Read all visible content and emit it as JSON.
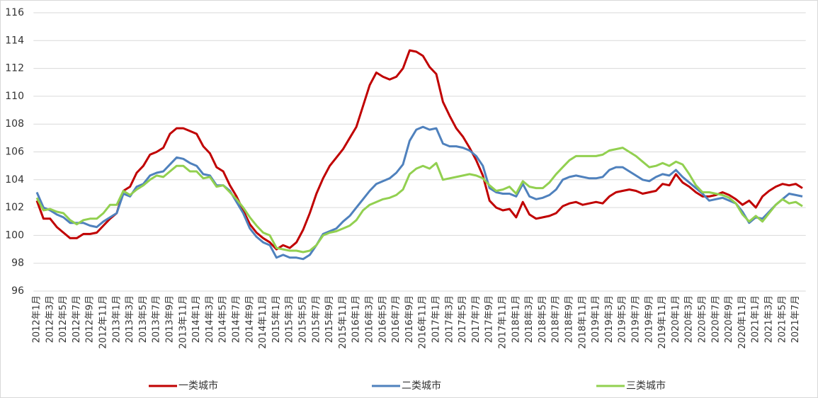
{
  "chart_data": {
    "type": "line",
    "categories": [
      "2012年1月",
      null,
      "2012年3月",
      null,
      "2012年5月",
      null,
      "2012年7月",
      null,
      "2012年9月",
      null,
      "2012年11月",
      null,
      "2013年1月",
      null,
      "2013年3月",
      null,
      "2013年5月",
      null,
      "2013年7月",
      null,
      "2013年9月",
      null,
      "2013年11月",
      null,
      "2014年1月",
      null,
      "2014年3月",
      null,
      "2014年5月",
      null,
      "2014年7月",
      null,
      "2014年9月",
      null,
      "2014年11月",
      null,
      "2015年1月",
      null,
      "2015年3月",
      null,
      "2015年5月",
      null,
      "2015年7月",
      null,
      "2015年9月",
      null,
      "2015年11月",
      null,
      "2016年1月",
      null,
      "2016年3月",
      null,
      "2016年5月",
      null,
      "2016年7月",
      null,
      "2016年9月",
      null,
      "2016年11月",
      null,
      "2017年1月",
      null,
      "2017年3月",
      null,
      "2017年5月",
      null,
      "2017年7月",
      null,
      "2017年9月",
      null,
      "2017年11月",
      null,
      "2018年1月",
      null,
      "2018年3月",
      null,
      "2018年5月",
      null,
      "2018年7月",
      null,
      "2018年9月",
      null,
      "2018年11月",
      null,
      "2019年1月",
      null,
      "2019年3月",
      null,
      "2019年5月",
      null,
      "2019年7月",
      null,
      "2019年9月",
      null,
      "2019年11月",
      null,
      "2020年1月",
      null,
      "2020年3月",
      null,
      "2020年5月",
      null,
      "2020年7月",
      null,
      "2020年9月",
      null,
      "2020年11月",
      null,
      "2021年1月",
      null,
      "2021年3月",
      null,
      "2021年5月",
      null,
      "2021年7月",
      null
    ],
    "series": [
      {
        "name": "一类城市",
        "color": "#c00000",
        "values": [
          102.5,
          101.2,
          101.2,
          100.6,
          100.2,
          99.8,
          99.8,
          100.1,
          100.1,
          100.2,
          100.7,
          101.2,
          101.6,
          103.2,
          103.5,
          104.5,
          105.0,
          105.8,
          106.0,
          106.3,
          107.3,
          107.7,
          107.7,
          107.5,
          107.3,
          106.4,
          105.9,
          104.9,
          104.6,
          103.6,
          102.8,
          101.8,
          100.8,
          100.2,
          99.8,
          99.5,
          99.0,
          99.3,
          99.1,
          99.5,
          100.4,
          101.6,
          103.0,
          104.1,
          105.0,
          105.6,
          106.2,
          107.0,
          107.8,
          109.3,
          110.8,
          111.7,
          111.4,
          111.2,
          111.4,
          112.0,
          113.3,
          113.2,
          112.9,
          112.1,
          111.6,
          109.6,
          108.6,
          107.7,
          107.1,
          106.3,
          105.4,
          104.3,
          102.5,
          102.0,
          101.8,
          101.9,
          101.3,
          102.4,
          101.5,
          101.2,
          101.3,
          101.4,
          101.6,
          102.1,
          102.3,
          102.4,
          102.2,
          102.3,
          102.4,
          102.3,
          102.8,
          103.1,
          103.2,
          103.3,
          103.2,
          103.0,
          103.1,
          103.2,
          103.7,
          103.6,
          104.4,
          103.8,
          103.5,
          103.1,
          102.8,
          102.8,
          102.9,
          103.1,
          102.9,
          102.6,
          102.2,
          102.5,
          102.0,
          102.8,
          103.2,
          103.5,
          103.7,
          103.6,
          103.7,
          103.4
        ]
      },
      {
        "name": "二类城市",
        "color": "#4f81bd",
        "values": [
          103.1,
          102.0,
          101.8,
          101.5,
          101.3,
          100.9,
          100.9,
          100.9,
          100.7,
          100.6,
          101.0,
          101.3,
          101.6,
          103.0,
          102.8,
          103.5,
          103.7,
          104.3,
          104.5,
          104.6,
          105.1,
          105.6,
          105.5,
          105.2,
          105.0,
          104.4,
          104.3,
          103.6,
          103.6,
          103.2,
          102.4,
          101.6,
          100.5,
          99.9,
          99.5,
          99.3,
          98.4,
          98.6,
          98.4,
          98.4,
          98.3,
          98.6,
          99.3,
          100.1,
          100.3,
          100.5,
          101.0,
          101.4,
          102.0,
          102.6,
          103.2,
          103.7,
          103.9,
          104.1,
          104.5,
          105.1,
          106.8,
          107.6,
          107.8,
          107.6,
          107.7,
          106.6,
          106.4,
          106.4,
          106.3,
          106.1,
          105.7,
          105.0,
          103.4,
          103.1,
          103.0,
          103.0,
          102.8,
          103.7,
          102.8,
          102.6,
          102.7,
          102.9,
          103.3,
          104.0,
          104.2,
          104.3,
          104.2,
          104.1,
          104.1,
          104.2,
          104.7,
          104.9,
          104.9,
          104.6,
          104.3,
          104.0,
          103.9,
          104.2,
          104.4,
          104.3,
          104.7,
          104.2,
          103.8,
          103.4,
          103.0,
          102.5,
          102.6,
          102.7,
          102.5,
          102.3,
          101.7,
          100.9,
          101.3,
          101.2,
          101.7,
          102.2,
          102.6,
          103.0,
          102.9,
          102.8
        ]
      },
      {
        "name": "三类城市",
        "color": "#92d050",
        "values": [
          102.7,
          101.8,
          101.9,
          101.7,
          101.6,
          101.1,
          100.8,
          101.1,
          101.2,
          101.2,
          101.6,
          102.2,
          102.2,
          103.2,
          102.9,
          103.3,
          103.6,
          104.0,
          104.3,
          104.2,
          104.6,
          105.0,
          105.0,
          104.6,
          104.6,
          104.1,
          104.2,
          103.5,
          103.6,
          103.1,
          102.6,
          102.0,
          101.3,
          100.7,
          100.2,
          100.0,
          99.1,
          99.0,
          98.9,
          98.9,
          98.8,
          98.9,
          99.3,
          100.0,
          100.2,
          100.3,
          100.5,
          100.7,
          101.1,
          101.8,
          102.2,
          102.4,
          102.6,
          102.7,
          102.9,
          103.3,
          104.4,
          104.8,
          105.0,
          104.8,
          105.2,
          104.0,
          104.1,
          104.2,
          104.3,
          104.4,
          104.3,
          104.1,
          103.6,
          103.2,
          103.3,
          103.5,
          103.0,
          103.9,
          103.5,
          103.4,
          103.4,
          103.8,
          104.4,
          104.9,
          105.4,
          105.7,
          105.7,
          105.7,
          105.7,
          105.8,
          106.1,
          106.2,
          106.3,
          106.0,
          105.7,
          105.3,
          104.9,
          105.0,
          105.2,
          105.0,
          105.3,
          105.1,
          104.4,
          103.6,
          103.1,
          103.1,
          103.0,
          102.9,
          102.7,
          102.3,
          101.5,
          101.0,
          101.4,
          101.0,
          101.6,
          102.2,
          102.6,
          102.3,
          102.4,
          102.1
        ]
      }
    ],
    "ylim": [
      96,
      116
    ],
    "yticks": [
      96,
      98,
      100,
      102,
      104,
      106,
      108,
      110,
      112,
      114,
      116
    ],
    "grid": true,
    "legend": "bottom"
  }
}
